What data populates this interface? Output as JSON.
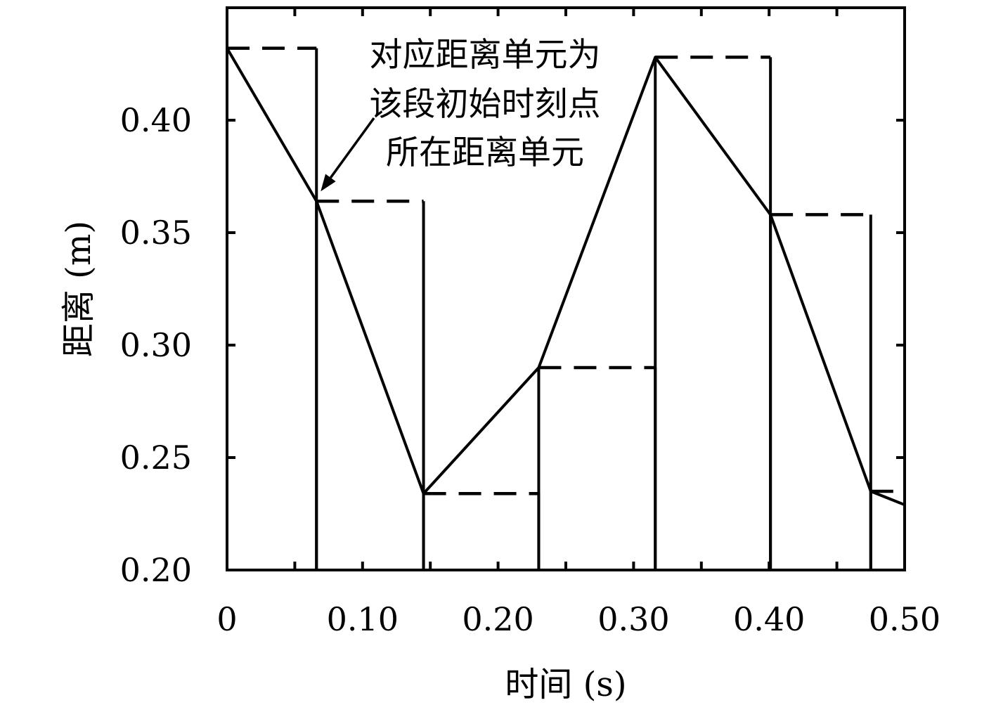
{
  "chart_data": {
    "type": "line",
    "title": "",
    "xlabel": "时间 (s)",
    "ylabel": "距离 (m)",
    "xlim": [
      0,
      0.5
    ],
    "ylim": [
      0.2,
      0.45
    ],
    "x_ticks": [
      {
        "value": 0,
        "label": "0"
      },
      {
        "value": 0.1,
        "label": "0.10"
      },
      {
        "value": 0.2,
        "label": "0.20"
      },
      {
        "value": 0.3,
        "label": "0.30"
      },
      {
        "value": 0.4,
        "label": "0.40"
      },
      {
        "value": 0.5,
        "label": "0.50"
      }
    ],
    "y_ticks": [
      {
        "value": 0.2,
        "label": "0.20"
      },
      {
        "value": 0.25,
        "label": "0.25"
      },
      {
        "value": 0.3,
        "label": "0.30"
      },
      {
        "value": 0.35,
        "label": "0.35"
      },
      {
        "value": 0.4,
        "label": "0.40"
      }
    ],
    "x_minor_ticks": [
      0.05,
      0.15,
      0.25,
      0.35,
      0.45
    ],
    "grid": false,
    "series": [
      {
        "style": "solid",
        "points": [
          [
            0.0,
            0.432
          ],
          [
            0.066,
            0.364
          ],
          [
            0.145,
            0.234
          ],
          [
            0.23,
            0.29
          ],
          [
            0.316,
            0.428
          ],
          [
            0.401,
            0.358
          ],
          [
            0.475,
            0.235
          ],
          [
            0.5,
            0.229
          ]
        ]
      },
      {
        "style": "dashed",
        "segments": [
          {
            "x": [
              0.0,
              0.066
            ],
            "y": 0.432
          },
          {
            "x": [
              0.066,
              0.145
            ],
            "y": 0.364
          },
          {
            "x": [
              0.145,
              0.23
            ],
            "y": 0.234
          },
          {
            "x": [
              0.23,
              0.316
            ],
            "y": 0.29
          },
          {
            "x": [
              0.316,
              0.401
            ],
            "y": 0.428
          },
          {
            "x": [
              0.401,
              0.475
            ],
            "y": 0.358
          },
          {
            "x": [
              0.475,
              0.5
            ],
            "y": 0.235
          }
        ]
      },
      {
        "style": "vertical",
        "x": [
          0.066,
          0.145,
          0.23,
          0.316,
          0.401,
          0.475
        ]
      }
    ],
    "annotation": {
      "lines": [
        "对应距离单元为",
        "该段初始时刻点",
        "所在距离单元"
      ],
      "target": [
        0.066,
        0.364
      ]
    }
  }
}
